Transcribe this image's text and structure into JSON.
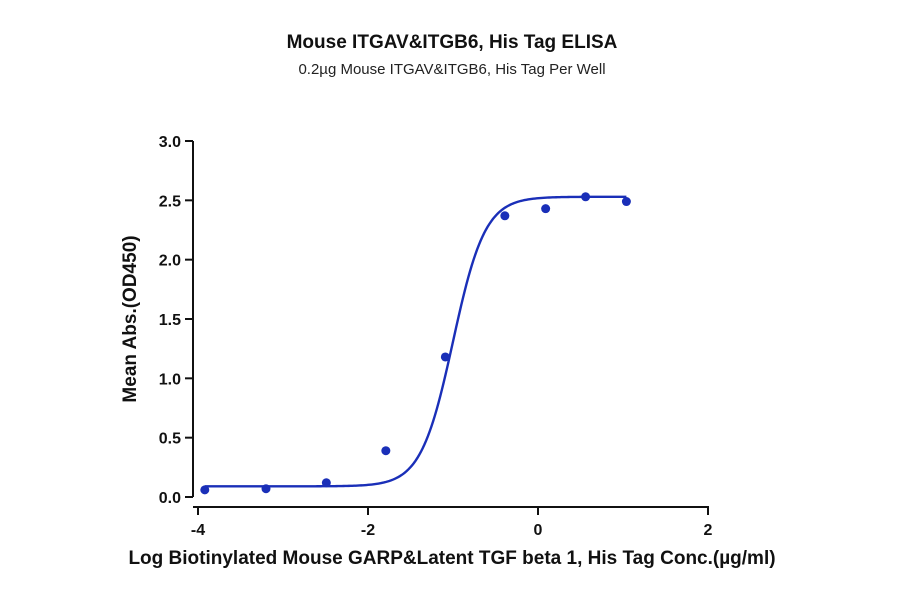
{
  "chart_data": {
    "type": "scatter",
    "title": "Mouse ITGAV&ITGB6, His Tag ELISA",
    "subtitle": "0.2µg Mouse ITGAV&ITGB6, His Tag Per Well",
    "xlabel": "Log Biotinylated Mouse GARP&Latent TGF beta 1, His Tag Conc.(µg/ml)",
    "ylabel": "Mean Abs.(OD450)",
    "xlim": [
      -4,
      2
    ],
    "ylim": [
      0,
      3
    ],
    "x_ticks": [
      -4,
      -2,
      0,
      2
    ],
    "x_tick_labels": [
      "-4",
      "-2",
      "0",
      "2"
    ],
    "y_ticks": [
      0,
      0.5,
      1,
      1.5,
      2,
      2.5,
      3
    ],
    "y_tick_labels": [
      "0.0",
      "0.5",
      "1.0",
      "1.5",
      "2.0",
      "2.5",
      "3.0"
    ],
    "grid": false,
    "legend": "none",
    "color": "#1a2fb8",
    "points": {
      "x": [
        -3.92,
        -3.2,
        -2.49,
        -1.79,
        -1.09,
        -0.39,
        0.09,
        0.56,
        1.04
      ],
      "y": [
        0.06,
        0.07,
        0.12,
        0.39,
        1.18,
        2.37,
        2.43,
        2.53,
        2.49
      ]
    },
    "fit": {
      "model": "4PL",
      "bottom": 0.09,
      "top": 2.53,
      "logEC50": -1.0,
      "hill": 2.3
    }
  }
}
